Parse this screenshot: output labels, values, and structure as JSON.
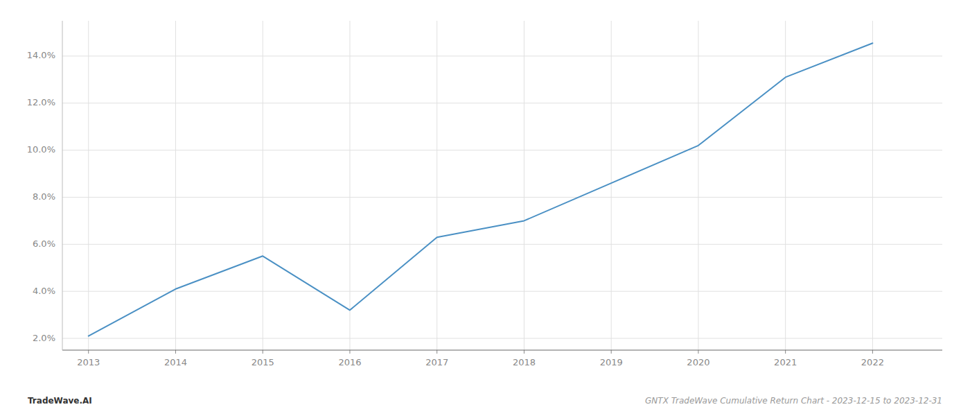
{
  "chart_data": {
    "type": "line",
    "title": "GNTX TradeWave Cumulative Return Chart - 2023-12-15 to 2023-12-31",
    "annotations": [
      "TradeWave.AI"
    ],
    "x": [
      2013,
      2014,
      2015,
      2016,
      2017,
      2018,
      2019,
      2020,
      2021,
      2022
    ],
    "values": [
      2.1,
      4.1,
      5.5,
      3.2,
      6.3,
      7.0,
      8.6,
      10.2,
      13.1,
      14.55
    ],
    "color": "#4a90c4",
    "xlim": [
      2012.7,
      2022.8
    ],
    "xticks": [
      2013,
      2014,
      2015,
      2016,
      2017,
      2018,
      2019,
      2020,
      2021,
      2022
    ],
    "ylim": [
      1.5,
      15.5
    ],
    "yticks": [
      {
        "value": 2.0,
        "label": "2.0%"
      },
      {
        "value": 4.0,
        "label": "4.0%"
      },
      {
        "value": 6.0,
        "label": "6.0%"
      },
      {
        "value": 8.0,
        "label": "8.0%"
      },
      {
        "value": 10.0,
        "label": "10.0%"
      },
      {
        "value": 12.0,
        "label": "12.0%"
      },
      {
        "value": 14.0,
        "label": "14.0%"
      }
    ],
    "grid": true
  }
}
